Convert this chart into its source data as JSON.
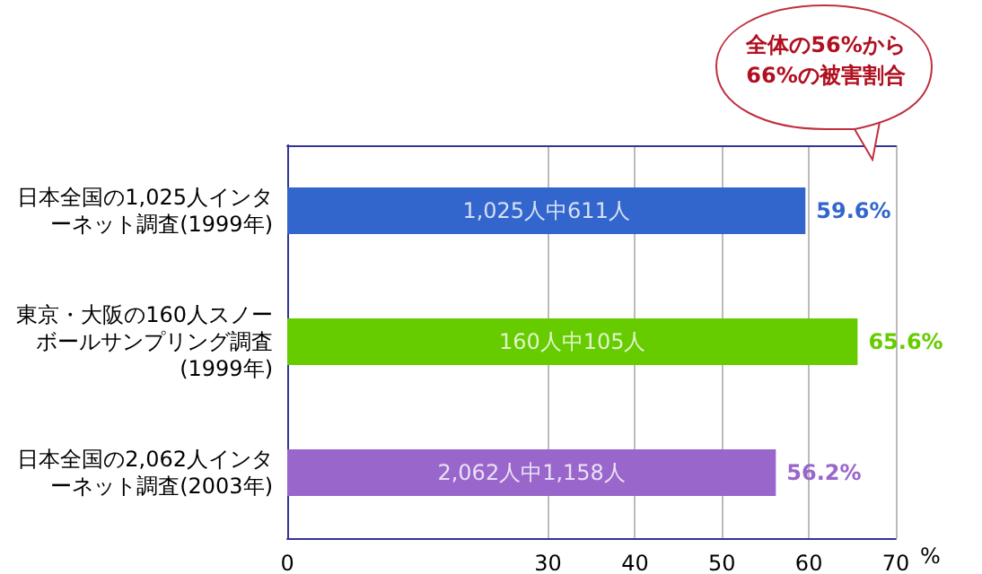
{
  "chart_data": {
    "type": "bar",
    "orientation": "horizontal",
    "categories": [
      "日本全国の1,025人インターネット調査(1999年)",
      "東京・大阪の160人スノーボールサンプリング調査(1999年)",
      "日本全国の2,062人インターネット調査(2003年)"
    ],
    "values": [
      59.6,
      65.6,
      56.2
    ],
    "colors": [
      "#3366cc",
      "#66cc00",
      "#9966cc"
    ],
    "value_labels": [
      "59.6%",
      "65.6%",
      "56.2%"
    ],
    "xlabel": "%",
    "xlim": [
      0,
      70
    ],
    "xticks": [
      0,
      30,
      40,
      50,
      60,
      70
    ],
    "grid": "x",
    "annotations": [
      "1,025人中611人",
      "160人中105人",
      "2,062人中1,158人",
      "全体の56%から66%の被害割合"
    ]
  }
}
